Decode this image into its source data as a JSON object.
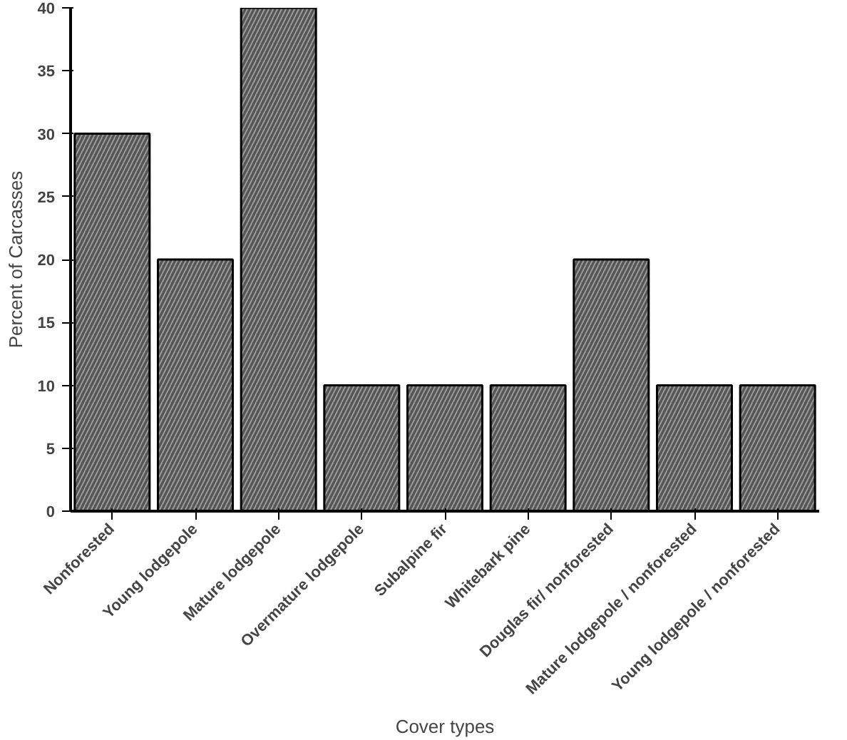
{
  "chart_data": {
    "type": "bar",
    "xlabel": "Cover types",
    "ylabel": "Percent of Carcasses",
    "categories": [
      "Nonforested",
      "Young lodgepole",
      "Mature lodgepole",
      "Overmature lodgepole",
      "Subalpine fir",
      "Whitebark pine",
      "Douglas fir/ nonforested",
      "Mature lodgepole / nonforested",
      "Young lodgepole / nonforested"
    ],
    "values": [
      30,
      20,
      40,
      10,
      10,
      10,
      20,
      10,
      10
    ],
    "color": "#555555",
    "ylim": [
      0,
      40
    ],
    "yticks": [
      0,
      5,
      10,
      15,
      20,
      25,
      30,
      35,
      40
    ],
    "grid": false
  }
}
